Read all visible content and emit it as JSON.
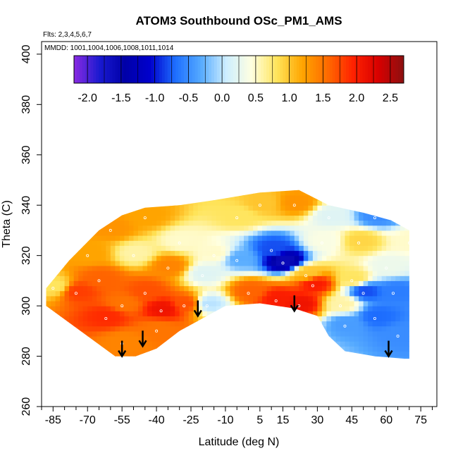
{
  "chart_data": {
    "type": "heatmap",
    "title": "ATOM3 Southbound OSc_PM1_AMS",
    "notes": [
      "Flts: 2,3,4,5,6,7",
      "MMDD: 1001,1004,1006,1008,1011,1014"
    ],
    "xlabel": "Latitude (deg N)",
    "ylabel": "Theta (C)",
    "xlim": [
      -90,
      82
    ],
    "ylim": [
      260,
      405
    ],
    "x_ticks": [
      -85,
      -70,
      -55,
      -40,
      -25,
      -10,
      5,
      15,
      30,
      45,
      60,
      75
    ],
    "x_minor_step": 5,
    "y_ticks": [
      260,
      280,
      300,
      320,
      340,
      360,
      380,
      400
    ],
    "colorbar": {
      "range": [
        -2.2,
        2.7
      ],
      "ticks": [
        "-2.0",
        "-1.5",
        "-1.0",
        "-0.5",
        "0.0",
        "0.5",
        "1.0",
        "1.5",
        "2.0",
        "2.5"
      ],
      "tick_values": [
        -2.0,
        -1.5,
        -1.0,
        -0.5,
        0.0,
        0.5,
        1.0,
        1.5,
        2.0,
        2.5
      ],
      "colors": [
        "#8a2be2",
        "#1a1ad0",
        "#0000a8",
        "#0000cd",
        "#1e6fff",
        "#55aaff",
        "#cdeeff",
        "#ffffe0",
        "#ffe45a",
        "#ffa500",
        "#ff6a00",
        "#ff2200",
        "#d80000",
        "#8b1010"
      ]
    },
    "lower_boundary": [
      [
        -58,
        280
      ],
      [
        -49,
        280
      ],
      [
        -40,
        283
      ],
      [
        -30,
        290
      ],
      [
        -20,
        295
      ],
      [
        -10,
        300
      ],
      [
        5,
        301
      ],
      [
        20,
        299
      ],
      [
        30,
        296
      ],
      [
        35,
        288
      ],
      [
        42,
        282
      ],
      [
        55,
        280
      ],
      [
        68,
        279
      ]
    ],
    "upper_boundary": [
      [
        -88,
        307
      ],
      [
        -78,
        318
      ],
      [
        -65,
        330
      ],
      [
        -55,
        336
      ],
      [
        -45,
        339
      ],
      [
        -30,
        340
      ],
      [
        -15,
        342
      ],
      [
        5,
        345
      ],
      [
        22,
        346
      ],
      [
        35,
        340
      ],
      [
        50,
        337
      ],
      [
        62,
        334
      ],
      [
        70,
        330
      ]
    ],
    "data_points": [
      {
        "lat": -85,
        "theta": 307,
        "value": 0.8
      },
      {
        "lat": -75,
        "theta": 305,
        "value": 1.8
      },
      {
        "lat": -70,
        "theta": 320,
        "value": 1.2
      },
      {
        "lat": -65,
        "theta": 310,
        "value": 1.6
      },
      {
        "lat": -60,
        "theta": 330,
        "value": 1.3
      },
      {
        "lat": -55,
        "theta": 300,
        "value": 1.5
      },
      {
        "lat": -55,
        "theta": 285,
        "value": 1.4
      },
      {
        "lat": -50,
        "theta": 320,
        "value": 0.6
      },
      {
        "lat": -45,
        "theta": 335,
        "value": 1.2
      },
      {
        "lat": -45,
        "theta": 305,
        "value": 1.7
      },
      {
        "lat": -40,
        "theta": 290,
        "value": 1.5
      },
      {
        "lat": -35,
        "theta": 315,
        "value": 1.4
      },
      {
        "lat": -30,
        "theta": 325,
        "value": 0.5
      },
      {
        "lat": -28,
        "theta": 300,
        "value": 1.7
      },
      {
        "lat": -20,
        "theta": 312,
        "value": 0.2
      },
      {
        "lat": -18,
        "theta": 300,
        "value": 0.0
      },
      {
        "lat": -15,
        "theta": 320,
        "value": 0.5
      },
      {
        "lat": -5,
        "theta": 335,
        "value": 0.8
      },
      {
        "lat": -5,
        "theta": 318,
        "value": -0.3
      },
      {
        "lat": 0,
        "theta": 305,
        "value": 1.6
      },
      {
        "lat": 10,
        "theta": 322,
        "value": -0.8
      },
      {
        "lat": 15,
        "theta": 317,
        "value": -1.6
      },
      {
        "lat": 12,
        "theta": 302,
        "value": 2.0
      },
      {
        "lat": 20,
        "theta": 340,
        "value": 1.3
      },
      {
        "lat": 22,
        "theta": 300,
        "value": 2.1
      },
      {
        "lat": 25,
        "theta": 312,
        "value": 1.0
      },
      {
        "lat": 28,
        "theta": 308,
        "value": 2.0
      },
      {
        "lat": 32,
        "theta": 325,
        "value": 0.4
      },
      {
        "lat": 40,
        "theta": 300,
        "value": 0.6
      },
      {
        "lat": 42,
        "theta": 292,
        "value": -0.4
      },
      {
        "lat": 45,
        "theta": 310,
        "value": 0.8
      },
      {
        "lat": 48,
        "theta": 325,
        "value": 0.9
      },
      {
        "lat": 55,
        "theta": 335,
        "value": -0.5
      },
      {
        "lat": 55,
        "theta": 295,
        "value": -0.7
      },
      {
        "lat": 60,
        "theta": 315,
        "value": 0.3
      },
      {
        "lat": 63,
        "theta": 305,
        "value": -0.6
      },
      {
        "lat": 65,
        "theta": 288,
        "value": -0.5
      },
      {
        "lat": 70,
        "theta": 325,
        "value": 0.5
      },
      {
        "lat": -62,
        "theta": 295,
        "value": 1.9
      },
      {
        "lat": -38,
        "theta": 298,
        "value": 2.1
      },
      {
        "lat": 5,
        "theta": 340,
        "value": 1.0
      },
      {
        "lat": 35,
        "theta": 335,
        "value": 0.2
      },
      {
        "lat": 50,
        "theta": 305,
        "value": -0.8
      }
    ],
    "arrows": [
      {
        "lat": -55,
        "theta": 280
      },
      {
        "lat": -46,
        "theta": 284
      },
      {
        "lat": -22,
        "theta": 296
      },
      {
        "lat": 20,
        "theta": 298
      },
      {
        "lat": 61,
        "theta": 280
      }
    ]
  }
}
